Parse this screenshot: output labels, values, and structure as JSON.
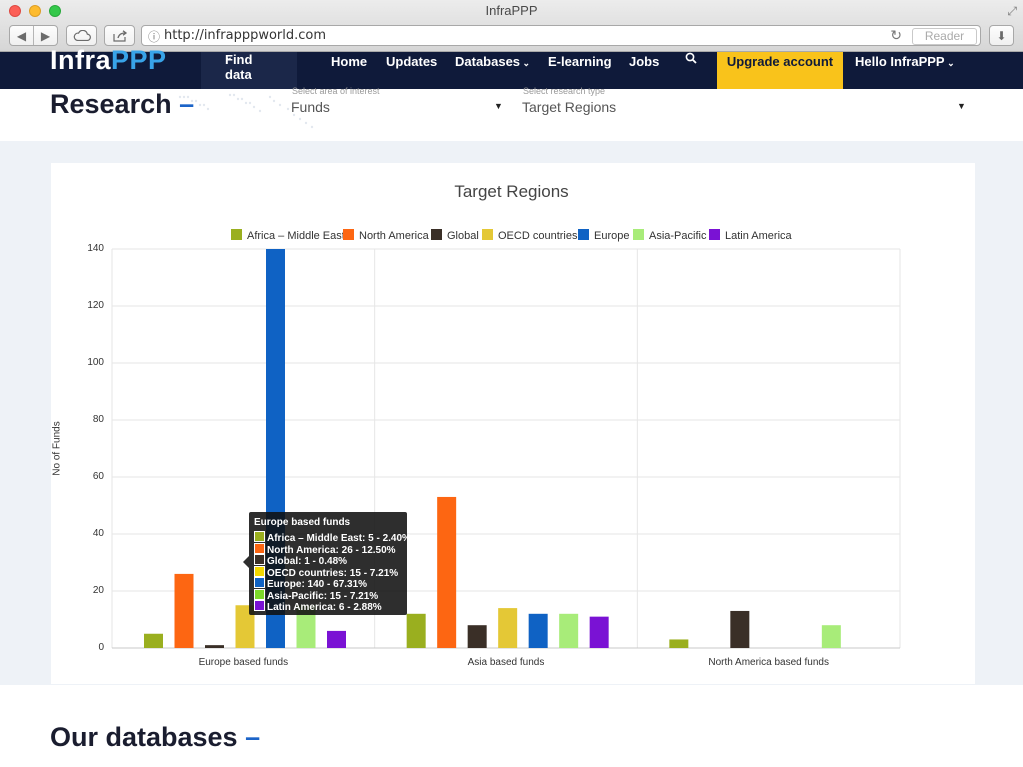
{
  "browser": {
    "window_title": "InfraPPP",
    "url": "http://infrapppworld.com",
    "reader_label": "Reader"
  },
  "site_nav": {
    "logo_infra": "Infra",
    "logo_ppp": "PPP",
    "find_data": "Find data",
    "items": [
      "Home",
      "Updates",
      "Databases",
      "E-learning",
      "Jobs"
    ],
    "upgrade": "Upgrade account",
    "user": "Hello InfraPPP"
  },
  "research": {
    "title": "Research",
    "area_label": "Select area of interest",
    "area_value": "Funds",
    "type_label": "Select research type",
    "type_value": "Target Regions"
  },
  "chart_data": {
    "type": "bar",
    "title": "Target Regions",
    "ylabel": "No of Funds",
    "xlabel": "",
    "ylim": [
      0,
      140
    ],
    "yticks": [
      0,
      20,
      40,
      60,
      80,
      100,
      120,
      140
    ],
    "categories": [
      "Europe based funds",
      "Asia based funds",
      "North America based funds"
    ],
    "legend_position": "top",
    "series": [
      {
        "name": "Africa – Middle East",
        "color": "#9aaf1f",
        "values": [
          5,
          12,
          3
        ]
      },
      {
        "name": "North America",
        "color": "#fd6612",
        "values": [
          26,
          53,
          0
        ]
      },
      {
        "name": "Global",
        "color": "#3a2f27",
        "values": [
          1,
          8,
          13
        ]
      },
      {
        "name": "OECD countries",
        "color": "#e4c836",
        "values": [
          15,
          14,
          0
        ]
      },
      {
        "name": "Europe",
        "color": "#0f62c4",
        "values": [
          140,
          12,
          0
        ]
      },
      {
        "name": "Asia-Pacific",
        "color": "#a8ec79",
        "values": [
          15,
          12,
          8
        ]
      },
      {
        "name": "Latin America",
        "color": "#7a12d4",
        "values": [
          6,
          11,
          0
        ]
      }
    ]
  },
  "tooltip": {
    "title": "Europe based funds",
    "rows": [
      {
        "text": "Africa – Middle East: 5 - 2.40%",
        "color": "#9aaf1f"
      },
      {
        "text": "North America: 26 - 12.50%",
        "color": "#fd6612"
      },
      {
        "text": "Global: 1 - 0.48%",
        "color": "#3a2f27"
      },
      {
        "text": "OECD countries: 15 - 7.21%",
        "color": "#f4d800"
      },
      {
        "text": "Europe: 140 - 67.31%",
        "color": "#0f62c4"
      },
      {
        "text": "Asia-Pacific: 15 - 7.21%",
        "color": "#7cd92a"
      },
      {
        "text": "Latin America: 6 - 2.88%",
        "color": "#7a12d4"
      }
    ]
  },
  "databases_title": "Our databases"
}
